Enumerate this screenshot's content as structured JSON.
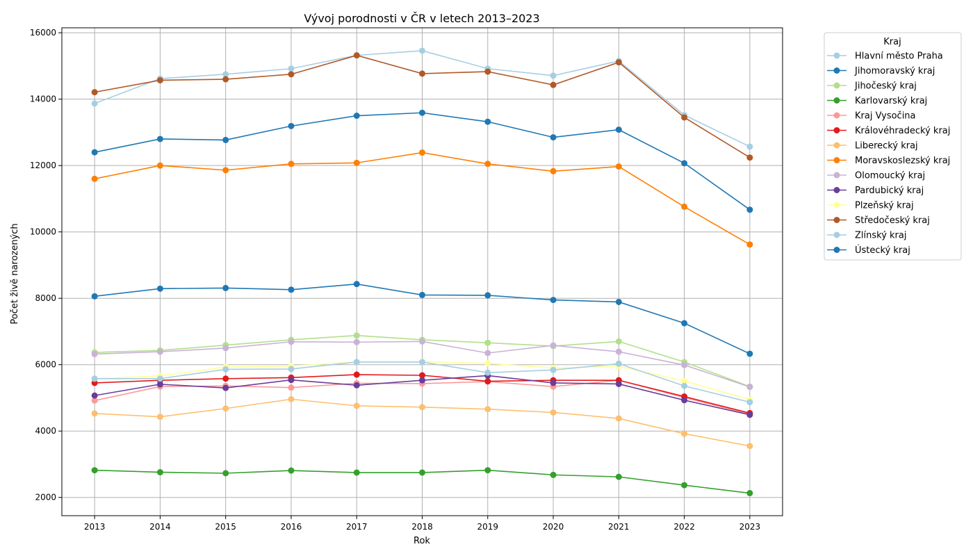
{
  "chart_data": {
    "type": "line",
    "title": "Vývoj porodnosti v ČR v letech 2013–2023",
    "xlabel": "Rok",
    "ylabel": "Počet živě narozených",
    "x": [
      2013,
      2014,
      2015,
      2016,
      2017,
      2018,
      2019,
      2020,
      2021,
      2022,
      2023
    ],
    "xlim": [
      2012.5,
      2023.5
    ],
    "ylim": [
      1450,
      16150
    ],
    "yticks": [
      2000,
      4000,
      6000,
      8000,
      10000,
      12000,
      14000,
      16000
    ],
    "grid": true,
    "legend": {
      "title": "Kraj",
      "placement": "outside-right"
    },
    "series": [
      {
        "name": "Hlavní město Praha",
        "color": "#a6cee3",
        "values": [
          13870,
          14620,
          14750,
          14920,
          15320,
          15460,
          14920,
          14710,
          15150,
          13520,
          12570
        ]
      },
      {
        "name": "Jihomoravský kraj",
        "color": "#1f78b4",
        "values": [
          12400,
          12800,
          12770,
          13190,
          13500,
          13590,
          13320,
          12850,
          13080,
          12070,
          10670
        ]
      },
      {
        "name": "Jihočeský kraj",
        "color": "#b2df8a",
        "values": [
          6370,
          6430,
          6590,
          6750,
          6880,
          6750,
          6660,
          6560,
          6700,
          6080,
          5340
        ]
      },
      {
        "name": "Karlovarský kraj",
        "color": "#33a02c",
        "values": [
          2820,
          2760,
          2730,
          2810,
          2750,
          2750,
          2820,
          2680,
          2620,
          2370,
          2130
        ]
      },
      {
        "name": "Kraj Vysočina",
        "color": "#fb9a99",
        "values": [
          4920,
          5340,
          5360,
          5310,
          5440,
          5430,
          5490,
          5340,
          5530,
          5010,
          4510
        ]
      },
      {
        "name": "Královéhradecký kraj",
        "color": "#e31a1c",
        "values": [
          5450,
          5530,
          5580,
          5610,
          5700,
          5680,
          5500,
          5530,
          5530,
          5040,
          4540
        ]
      },
      {
        "name": "Liberecký kraj",
        "color": "#fdbf6f",
        "values": [
          4530,
          4430,
          4680,
          4960,
          4760,
          4720,
          4660,
          4560,
          4380,
          3920,
          3550
        ]
      },
      {
        "name": "Moravskoslezský kraj",
        "color": "#ff7f00",
        "values": [
          11600,
          12000,
          11860,
          12050,
          12080,
          12390,
          12050,
          11830,
          11970,
          10760,
          9620
        ]
      },
      {
        "name": "Olomoucký kraj",
        "color": "#cab2d6",
        "values": [
          6320,
          6390,
          6500,
          6690,
          6680,
          6700,
          6350,
          6580,
          6390,
          5990,
          5330
        ]
      },
      {
        "name": "Pardubický kraj",
        "color": "#6a3d9a",
        "values": [
          5070,
          5410,
          5300,
          5540,
          5380,
          5530,
          5670,
          5450,
          5420,
          4930,
          4490
        ]
      },
      {
        "name": "Plzeňský kraj",
        "color": "#ffff99",
        "values": [
          5580,
          5660,
          5930,
          5960,
          6080,
          6090,
          6040,
          5900,
          5950,
          5510,
          4950
        ]
      },
      {
        "name": "Středočeský kraj",
        "color": "#b15928",
        "values": [
          14210,
          14570,
          14600,
          14750,
          15320,
          14770,
          14830,
          14430,
          15110,
          13450,
          12240
        ]
      },
      {
        "name": "Zlínský kraj",
        "color": "#a6cee3",
        "values": [
          5580,
          5580,
          5860,
          5870,
          6080,
          6080,
          5760,
          5840,
          6030,
          5360,
          4870
        ]
      },
      {
        "name": "Ústecký kraj",
        "color": "#1f78b4",
        "values": [
          8060,
          8290,
          8310,
          8260,
          8430,
          8100,
          8090,
          7950,
          7890,
          7250,
          6330
        ]
      }
    ]
  }
}
